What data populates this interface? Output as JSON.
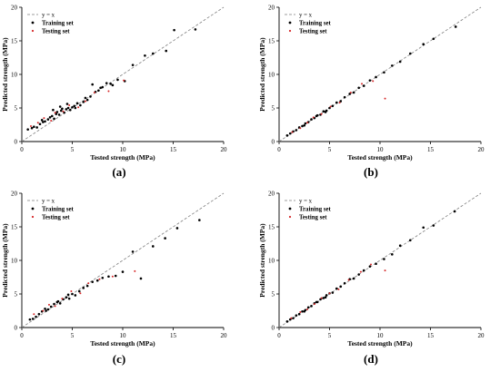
{
  "style": {
    "training_color": "#000000",
    "testing_color": "#d62728",
    "reference_line_color": "#7f7f7f",
    "axis_color": "#000000"
  },
  "chart_data": [
    {
      "type": "scatter",
      "panel_label": "(a)",
      "xlabel": "Tested strength (MPa)",
      "ylabel": "Predicted strength (MPa)",
      "xlim": [
        0,
        20
      ],
      "ylim": [
        0,
        20
      ],
      "xticks": [
        0,
        5,
        10,
        15,
        20
      ],
      "yticks": [
        0,
        5,
        10,
        15,
        20
      ],
      "legend": {
        "position": "top-left",
        "entries": [
          "y = x",
          "Training set",
          "Testing set"
        ]
      },
      "series": [
        {
          "name": "y = x",
          "kind": "line",
          "x": [
            0,
            20
          ],
          "y": [
            0,
            20
          ]
        },
        {
          "name": "Training set",
          "kind": "points",
          "x": [
            0.6,
            1.0,
            1.2,
            1.5,
            1.8,
            2.1,
            2.3,
            2.6,
            2.8,
            3.0,
            3.2,
            3.4,
            3.5,
            3.7,
            3.9,
            4.0,
            4.2,
            4.4,
            4.6,
            4.8,
            5.0,
            5.2,
            5.5,
            5.8,
            6.1,
            6.5,
            6.8,
            7.0,
            7.3,
            7.6,
            8.0,
            8.4,
            9.0,
            9.5,
            10.2,
            11.0,
            12.2,
            13.0,
            14.3,
            15.1,
            17.2,
            2.0,
            3.1,
            3.8,
            4.5,
            5.3,
            6.3,
            7.8,
            8.8
          ],
          "y": [
            1.8,
            2.0,
            2.2,
            2.1,
            2.6,
            2.9,
            3.0,
            3.3,
            3.6,
            3.8,
            3.4,
            4.1,
            4.4,
            4.0,
            4.6,
            4.9,
            4.3,
            4.8,
            5.0,
            4.7,
            5.1,
            5.3,
            5.7,
            5.4,
            5.9,
            6.2,
            6.7,
            8.5,
            7.4,
            7.6,
            8.1,
            8.7,
            8.4,
            9.2,
            9.0,
            11.4,
            12.8,
            13.1,
            13.5,
            16.6,
            16.7,
            3.2,
            4.7,
            5.2,
            5.6,
            5.0,
            6.5,
            8.0,
            8.6
          ]
        },
        {
          "name": "Testing set",
          "kind": "points",
          "x": [
            0.9,
            1.6,
            2.2,
            2.9,
            3.3,
            4.1,
            4.7,
            5.6,
            6.3,
            7.2,
            8.6,
            10.1
          ],
          "y": [
            2.3,
            2.8,
            3.5,
            3.1,
            4.3,
            4.5,
            5.4,
            5.1,
            6.0,
            7.3,
            7.5,
            9.1
          ]
        }
      ]
    },
    {
      "type": "scatter",
      "panel_label": "(b)",
      "xlabel": "Tested strength (MPa)",
      "ylabel": "Predicted strength (MPa)",
      "xlim": [
        0,
        20
      ],
      "ylim": [
        0,
        20
      ],
      "xticks": [
        0,
        5,
        10,
        15,
        20
      ],
      "yticks": [
        0,
        5,
        10,
        15,
        20
      ],
      "legend": {
        "position": "top-left",
        "entries": [
          "y = x",
          "Training set",
          "Testing set"
        ]
      },
      "series": [
        {
          "name": "y = x",
          "kind": "line",
          "x": [
            0,
            20
          ],
          "y": [
            0,
            20
          ]
        },
        {
          "name": "Training set",
          "kind": "points",
          "x": [
            0.8,
            1.1,
            1.4,
            1.7,
            2.0,
            2.3,
            2.6,
            2.9,
            3.2,
            3.5,
            3.8,
            4.1,
            4.4,
            4.7,
            5.0,
            5.3,
            5.7,
            6.1,
            6.5,
            7.0,
            7.4,
            7.9,
            8.4,
            9.0,
            9.6,
            10.4,
            11.2,
            12.0,
            13.0,
            14.3,
            15.3,
            17.5,
            2.5,
            3.7,
            4.6
          ],
          "y": [
            0.9,
            1.2,
            1.5,
            1.7,
            2.1,
            2.3,
            2.7,
            2.9,
            3.3,
            3.5,
            3.9,
            4.0,
            4.5,
            4.6,
            5.0,
            5.3,
            5.8,
            6.0,
            6.6,
            7.1,
            7.3,
            8.0,
            8.3,
            9.1,
            9.6,
            10.3,
            11.3,
            11.9,
            13.1,
            14.5,
            15.3,
            17.1,
            2.4,
            3.8,
            4.4
          ]
        },
        {
          "name": "Testing set",
          "kind": "points",
          "x": [
            1.3,
            2.1,
            2.8,
            3.4,
            4.2,
            5.1,
            6.0,
            7.1,
            8.2,
            9.3,
            10.5
          ],
          "y": [
            1.4,
            2.0,
            2.8,
            3.6,
            4.1,
            5.2,
            5.8,
            7.3,
            8.6,
            9.0,
            6.4
          ]
        }
      ]
    },
    {
      "type": "scatter",
      "panel_label": "(c)",
      "xlabel": "Tested strength (MPa)",
      "ylabel": "Predicted strength (MPa)",
      "xlim": [
        0,
        20
      ],
      "ylim": [
        0,
        20
      ],
      "xticks": [
        0,
        5,
        10,
        15,
        20
      ],
      "yticks": [
        0,
        5,
        10,
        15,
        20
      ],
      "legend": {
        "position": "top-left",
        "entries": [
          "y = x",
          "Training set",
          "Testing set"
        ]
      },
      "series": [
        {
          "name": "y = x",
          "kind": "line",
          "x": [
            0,
            20
          ],
          "y": [
            0,
            20
          ]
        },
        {
          "name": "Training set",
          "kind": "points",
          "x": [
            0.8,
            1.1,
            1.4,
            1.7,
            2.0,
            2.3,
            2.6,
            2.9,
            3.2,
            3.5,
            3.8,
            4.1,
            4.4,
            4.7,
            5.0,
            5.3,
            5.7,
            6.1,
            6.5,
            7.0,
            7.5,
            8.0,
            8.6,
            9.3,
            10.0,
            11.0,
            11.8,
            13.0,
            14.2,
            15.4,
            17.6,
            2.4,
            3.6,
            4.6
          ],
          "y": [
            1.2,
            1.3,
            1.6,
            2.0,
            2.4,
            2.8,
            2.7,
            3.1,
            3.5,
            3.8,
            3.6,
            4.2,
            4.5,
            4.3,
            5.0,
            4.8,
            5.4,
            5.9,
            6.2,
            6.8,
            7.0,
            7.4,
            7.6,
            7.7,
            8.3,
            11.3,
            7.3,
            12.1,
            13.3,
            14.8,
            16.0,
            2.5,
            3.9,
            4.9
          ]
        },
        {
          "name": "Testing set",
          "kind": "points",
          "x": [
            1.2,
            2.1,
            2.7,
            3.3,
            4.0,
            4.9,
            5.8,
            6.6,
            7.7,
            9.0,
            11.2
          ],
          "y": [
            2.0,
            2.5,
            3.4,
            3.2,
            4.3,
            5.4,
            5.1,
            6.6,
            7.2,
            7.6,
            8.4
          ]
        }
      ]
    },
    {
      "type": "scatter",
      "panel_label": "(d)",
      "xlabel": "Tested strength (MPa)",
      "ylabel": "Predicted strength (MPa)",
      "xlim": [
        0,
        20
      ],
      "ylim": [
        0,
        20
      ],
      "xticks": [
        0,
        5,
        10,
        15,
        20
      ],
      "yticks": [
        0,
        5,
        10,
        15,
        20
      ],
      "legend": {
        "position": "top-left",
        "entries": [
          "y = x",
          "Training set",
          "Testing set"
        ]
      },
      "series": [
        {
          "name": "y = x",
          "kind": "line",
          "x": [
            0,
            20
          ],
          "y": [
            0,
            20
          ]
        },
        {
          "name": "Training set",
          "kind": "points",
          "x": [
            0.8,
            1.1,
            1.4,
            1.7,
            2.0,
            2.3,
            2.6,
            2.9,
            3.2,
            3.5,
            3.8,
            4.1,
            4.4,
            4.7,
            5.0,
            5.3,
            5.7,
            6.1,
            6.5,
            7.0,
            7.4,
            7.9,
            8.4,
            9.0,
            9.6,
            10.4,
            11.2,
            12.0,
            13.0,
            14.3,
            15.3,
            17.4,
            2.5,
            3.7,
            4.6
          ],
          "y": [
            0.9,
            1.2,
            1.4,
            1.8,
            2.0,
            2.4,
            2.6,
            3.0,
            3.2,
            3.6,
            3.8,
            4.2,
            4.4,
            4.8,
            5.1,
            5.2,
            5.8,
            6.1,
            6.6,
            7.2,
            7.3,
            7.9,
            8.5,
            9.1,
            9.5,
            10.2,
            10.9,
            12.2,
            13.0,
            14.9,
            15.2,
            17.3,
            2.4,
            3.8,
            4.5
          ]
        },
        {
          "name": "Testing set",
          "kind": "points",
          "x": [
            1.2,
            2.1,
            2.8,
            3.5,
            4.2,
            5.0,
            5.9,
            6.9,
            8.1,
            9.1,
            10.5
          ],
          "y": [
            1.4,
            2.3,
            2.7,
            3.5,
            4.4,
            5.1,
            5.7,
            7.1,
            8.3,
            9.4,
            8.5
          ]
        }
      ]
    }
  ]
}
